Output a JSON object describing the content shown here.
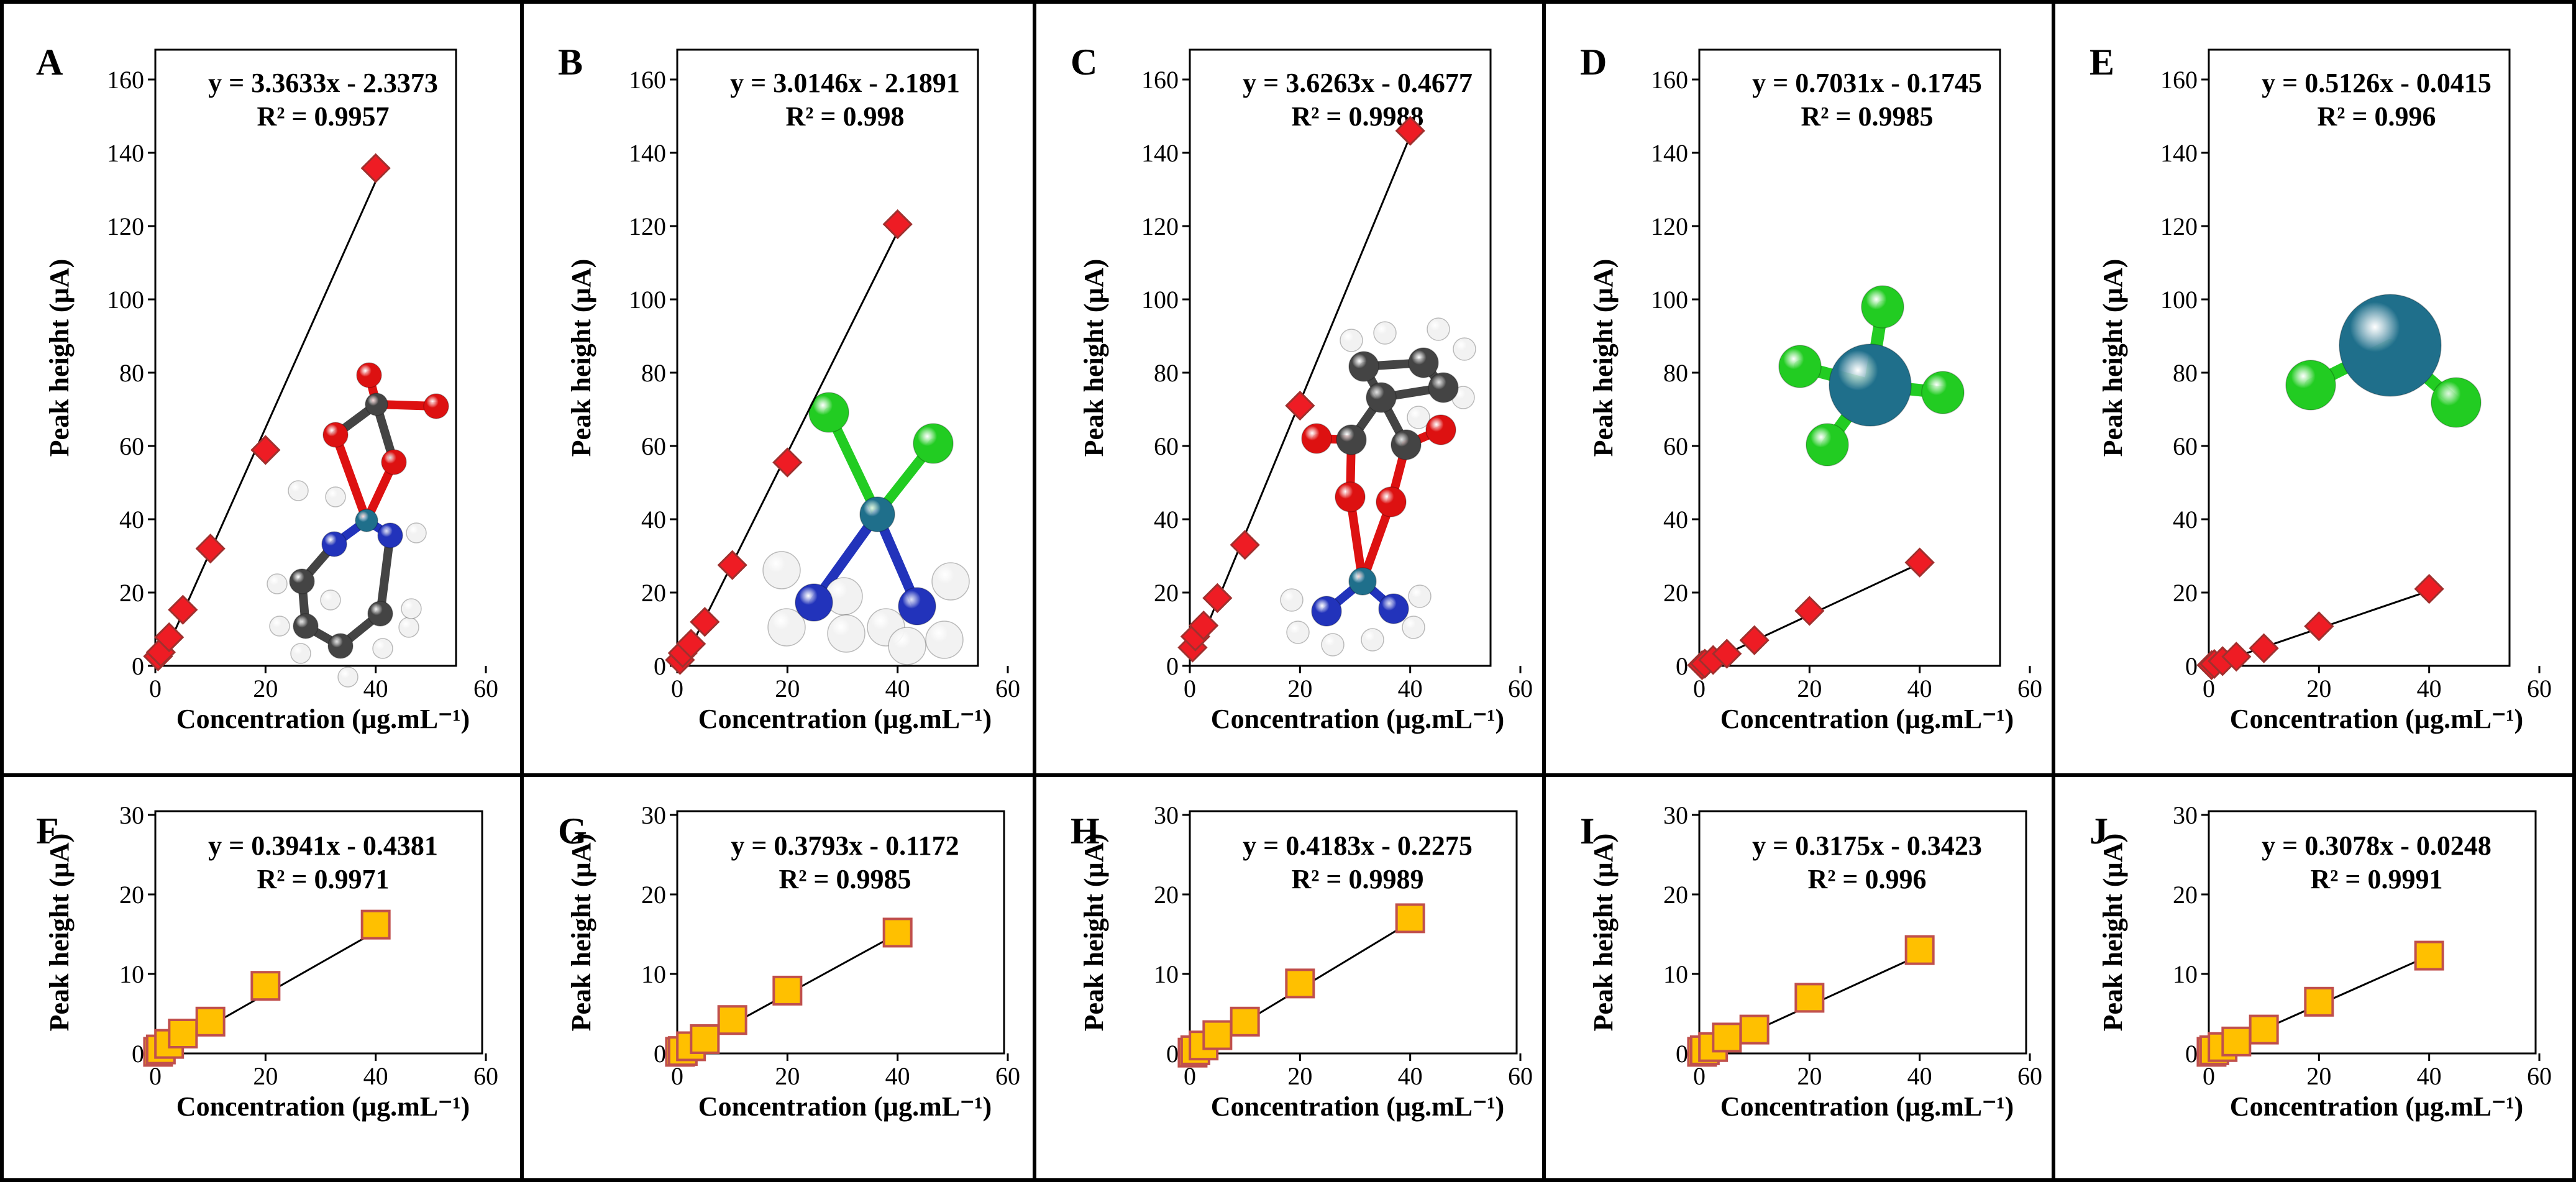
{
  "colors": {
    "diamond_fill": "#ee1c24",
    "diamond_stroke": "#a0302e",
    "square_fill": "#ffc000",
    "square_stroke": "#c0504d",
    "atom_pt": "#1f6f8b",
    "atom_cl": "#22cc22",
    "atom_n": "#2233bb",
    "atom_o": "#dd1111",
    "atom_c": "#444444",
    "atom_h": "#f2f2f2"
  },
  "chart_data": [
    {
      "panel": "A",
      "type": "scatter",
      "marker": "diamond",
      "molecule": "oxaliplatin",
      "equation": "y = 3.3633x - 2.3373",
      "r2": "R² = 0.9957",
      "xlabel": "Concentration  (µg.mL⁻¹)",
      "ylabel": "Peak height  (µA)",
      "xlim": [
        0,
        60
      ],
      "ylim": [
        0,
        160
      ],
      "xticks": [
        "0",
        "20",
        "40",
        "60"
      ],
      "yticks": [
        "0",
        "20",
        "40",
        "60",
        "80",
        "100",
        "120",
        "140",
        "160"
      ],
      "x": [
        0.5,
        1,
        2.5,
        5,
        10,
        20,
        40
      ],
      "y": [
        2.6,
        3.7,
        7.8,
        15.3,
        32.0,
        58.9,
        135.8
      ],
      "fit": {
        "slope": 3.3633,
        "intercept": -2.3373
      }
    },
    {
      "panel": "B",
      "type": "scatter",
      "marker": "diamond",
      "molecule": "cisplatin",
      "equation": "y = 3.0146x - 2.1891",
      "r2": "R² = 0.998",
      "xlabel": "Concentration  (µg.mL⁻¹)",
      "ylabel": "Peak height  (µA)",
      "xlim": [
        0,
        60
      ],
      "ylim": [
        0,
        160
      ],
      "xticks": [
        "0",
        "20",
        "40",
        "60"
      ],
      "yticks": [
        "0",
        "20",
        "40",
        "60",
        "80",
        "100",
        "120",
        "140",
        "160"
      ],
      "x": [
        0.5,
        1,
        2.5,
        5,
        10,
        20,
        40
      ],
      "y": [
        1.6,
        3.5,
        6.0,
        12.0,
        27.5,
        55.5,
        120.5
      ],
      "fit": {
        "slope": 3.0146,
        "intercept": -2.1891
      }
    },
    {
      "panel": "C",
      "type": "scatter",
      "marker": "diamond",
      "molecule": "carboplatin",
      "equation": "y = 3.6263x - 0.4677",
      "r2": "R² = 0.9988",
      "xlabel": "Concentration  (µg.mL⁻¹)",
      "ylabel": "Peak height  (µA)",
      "xlim": [
        0,
        60
      ],
      "ylim": [
        0,
        160
      ],
      "xticks": [
        "0",
        "20",
        "40",
        "60"
      ],
      "yticks": [
        "0",
        "20",
        "40",
        "60",
        "80",
        "100",
        "120",
        "140",
        "160"
      ],
      "x": [
        0.5,
        1,
        2.5,
        5,
        10,
        20,
        40
      ],
      "y": [
        5.0,
        8.0,
        11.0,
        18.5,
        33.0,
        71.0,
        146.0
      ],
      "fit": {
        "slope": 3.6263,
        "intercept": -0.4677
      }
    },
    {
      "panel": "D",
      "type": "scatter",
      "marker": "diamond",
      "molecule": "PtCl4",
      "equation": "y = 0.7031x - 0.1745",
      "r2": "R² = 0.9985",
      "xlabel": "Concentration  (µg.mL⁻¹)",
      "ylabel": "Peak height  (µA)",
      "xlim": [
        0,
        60
      ],
      "ylim": [
        0,
        160
      ],
      "xticks": [
        "0",
        "20",
        "40",
        "60"
      ],
      "yticks": [
        "0",
        "20",
        "40",
        "60",
        "80",
        "100",
        "120",
        "140",
        "160"
      ],
      "x": [
        0.5,
        1,
        2.5,
        5,
        10,
        20,
        40
      ],
      "y": [
        0.2,
        0.6,
        1.6,
        3.3,
        7.0,
        15.0,
        28.2
      ],
      "fit": {
        "slope": 0.7031,
        "intercept": -0.1745
      }
    },
    {
      "panel": "E",
      "type": "scatter",
      "marker": "diamond",
      "molecule": "PtCl2",
      "equation": "y = 0.5126x - 0.0415",
      "r2": "R² = 0.996",
      "xlabel": "Concentration  (µg.mL⁻¹)",
      "ylabel": "Peak height  (µA)",
      "xlim": [
        0,
        60
      ],
      "ylim": [
        0,
        160
      ],
      "xticks": [
        "0",
        "20",
        "40",
        "60"
      ],
      "yticks": [
        "0",
        "20",
        "40",
        "60",
        "80",
        "100",
        "120",
        "140",
        "160"
      ],
      "x": [
        0.5,
        1,
        2.5,
        5,
        10,
        20,
        40
      ],
      "y": [
        0.2,
        0.5,
        1.3,
        2.5,
        4.8,
        10.8,
        21.0
      ],
      "fit": {
        "slope": 0.5126,
        "intercept": -0.0415
      }
    },
    {
      "panel": "F",
      "type": "scatter",
      "marker": "square",
      "equation": "y = 0.3941x - 0.4381",
      "r2": "R² = 0.9971",
      "xlabel": "Concentration  (µg.mL⁻¹)",
      "ylabel": "Peak height  (µA)",
      "xlim": [
        0,
        60
      ],
      "ylim": [
        0,
        30
      ],
      "xticks": [
        "0",
        "20",
        "40",
        "60"
      ],
      "yticks": [
        "0",
        "10",
        "20",
        "30"
      ],
      "x": [
        0.5,
        1,
        2.5,
        5,
        10,
        20,
        40
      ],
      "y": [
        0.2,
        0.5,
        1.2,
        2.5,
        4.0,
        8.5,
        16.2
      ],
      "fit": {
        "slope": 0.3941,
        "intercept": -0.4381
      }
    },
    {
      "panel": "G",
      "type": "scatter",
      "marker": "square",
      "equation": "y = 0.3793x - 0.1172",
      "r2": "R² = 0.9985",
      "xlabel": "Concentration  (µg.mL⁻¹)",
      "ylabel": "Peak height  (µA)",
      "xlim": [
        0,
        60
      ],
      "ylim": [
        0,
        30
      ],
      "xticks": [
        "0",
        "20",
        "40",
        "60"
      ],
      "yticks": [
        "0",
        "10",
        "20",
        "30"
      ],
      "x": [
        0.5,
        1,
        2.5,
        5,
        10,
        20,
        40
      ],
      "y": [
        0.2,
        0.3,
        0.9,
        1.8,
        4.2,
        7.9,
        15.2
      ],
      "fit": {
        "slope": 0.3793,
        "intercept": -0.1172
      }
    },
    {
      "panel": "H",
      "type": "scatter",
      "marker": "square",
      "equation": "y = 0.4183x - 0.2275",
      "r2": "R² = 0.9989",
      "xlabel": "Concentration  (µg.mL⁻¹)",
      "ylabel": "Peak height  (µA)",
      "xlim": [
        0,
        60
      ],
      "ylim": [
        0,
        30
      ],
      "xticks": [
        "0",
        "20",
        "40",
        "60"
      ],
      "yticks": [
        "0",
        "10",
        "20",
        "30"
      ],
      "x": [
        0.5,
        1,
        2.5,
        5,
        10,
        20,
        40
      ],
      "y": [
        0.1,
        0.4,
        1.0,
        2.3,
        4.0,
        8.8,
        17.0
      ],
      "fit": {
        "slope": 0.4183,
        "intercept": -0.2275
      }
    },
    {
      "panel": "I",
      "type": "scatter",
      "marker": "square",
      "equation": "y = 0.3175x - 0.3423",
      "r2": "R² = 0.996",
      "xlabel": "Concentration  (µg.mL⁻¹)",
      "ylabel": "Peak height  (µA)",
      "xlim": [
        0,
        60
      ],
      "ylim": [
        0,
        30
      ],
      "xticks": [
        "0",
        "20",
        "40",
        "60"
      ],
      "yticks": [
        "0",
        "10",
        "20",
        "30"
      ],
      "x": [
        0.5,
        1,
        2.5,
        5,
        10,
        20,
        40
      ],
      "y": [
        0.2,
        0.4,
        0.8,
        2.0,
        3.0,
        7.0,
        13.0
      ],
      "fit": {
        "slope": 0.3175,
        "intercept": -0.3423
      }
    },
    {
      "panel": "J",
      "type": "scatter",
      "marker": "square",
      "equation": "y = 0.3078x - 0.0248",
      "r2": "R² = 0.9991",
      "xlabel": "Concentration  (µg.mL⁻¹)",
      "ylabel": "Peak height  (µA)",
      "xlim": [
        0,
        60
      ],
      "ylim": [
        0,
        30
      ],
      "xticks": [
        "0",
        "20",
        "40",
        "60"
      ],
      "yticks": [
        "0",
        "10",
        "20",
        "30"
      ],
      "x": [
        0.5,
        1,
        2.5,
        5,
        10,
        20,
        40
      ],
      "y": [
        0.2,
        0.4,
        0.8,
        1.5,
        3.0,
        6.5,
        12.3
      ],
      "fit": {
        "slope": 0.3078,
        "intercept": -0.0248
      }
    }
  ]
}
